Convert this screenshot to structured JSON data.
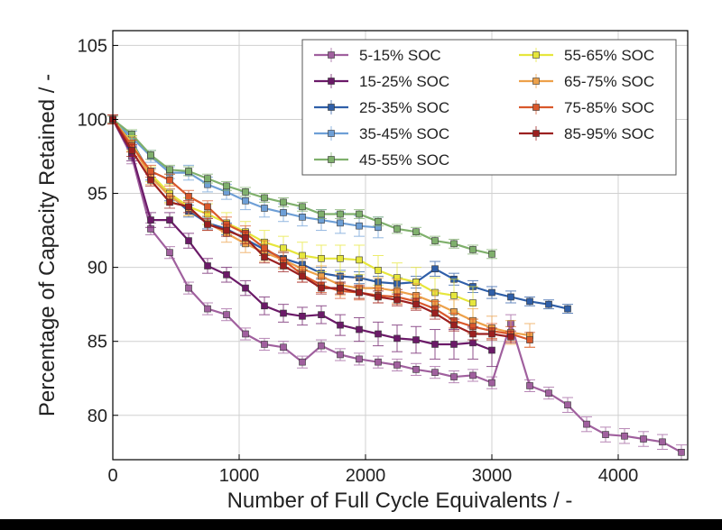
{
  "chart_data": {
    "type": "line",
    "title": "",
    "xlabel": "Number of Full Cycle Equivalents / -",
    "ylabel": "Percentage of Capacity Retained / -",
    "xlim": [
      0,
      4550
    ],
    "ylim": [
      77,
      106
    ],
    "xticks": [
      0,
      1000,
      2000,
      3000,
      4000
    ],
    "yticks": [
      80,
      85,
      90,
      95,
      100,
      105
    ],
    "grid": true,
    "legend_position": "top-right",
    "series": [
      {
        "name": "5-15% SOC",
        "color": "#a0609e",
        "x": [
          0,
          150,
          300,
          450,
          600,
          750,
          900,
          1050,
          1200,
          1350,
          1500,
          1650,
          1800,
          1950,
          2100,
          2250,
          2400,
          2550,
          2700,
          2850,
          3000,
          3150,
          3300,
          3450,
          3600,
          3750,
          3900,
          4050,
          4200,
          4350,
          4500
        ],
        "y": [
          100,
          97.5,
          92.6,
          91.0,
          88.6,
          87.2,
          86.8,
          85.5,
          84.8,
          84.6,
          83.6,
          84.7,
          84.1,
          83.8,
          83.6,
          83.4,
          83.1,
          82.9,
          82.6,
          82.7,
          82.2,
          86.2,
          82.0,
          81.5,
          80.7,
          79.4,
          78.7,
          78.6,
          78.4,
          78.2,
          77.5
        ],
        "err": [
          0.3,
          0.5,
          0.4,
          0.4,
          0.4,
          0.4,
          0.4,
          0.4,
          0.4,
          0.4,
          0.4,
          0.4,
          0.4,
          0.4,
          0.4,
          0.4,
          0.4,
          0.4,
          0.4,
          0.4,
          0.4,
          0.6,
          0.4,
          0.4,
          0.5,
          0.5,
          0.5,
          0.5,
          0.5,
          0.5,
          0.5
        ]
      },
      {
        "name": "15-25% SOC",
        "color": "#6b1a68",
        "x": [
          0,
          150,
          300,
          450,
          600,
          750,
          900,
          1050,
          1200,
          1350,
          1500,
          1650,
          1800,
          1950,
          2100,
          2250,
          2400,
          2550,
          2700,
          2850,
          3000
        ],
        "y": [
          100,
          97.7,
          93.2,
          93.2,
          91.8,
          90.1,
          89.5,
          88.6,
          87.4,
          86.9,
          86.7,
          86.8,
          86.1,
          85.8,
          85.5,
          85.2,
          85.1,
          84.8,
          84.8,
          84.9,
          84.4
        ],
        "err": [
          0.3,
          0.5,
          0.5,
          0.5,
          0.5,
          0.5,
          0.5,
          0.5,
          0.6,
          0.6,
          0.6,
          0.6,
          0.7,
          0.8,
          0.8,
          0.9,
          0.9,
          1.0,
          1.0,
          1.1,
          1.1
        ]
      },
      {
        "name": "25-35% SOC",
        "color": "#2f5fa8",
        "x": [
          0,
          150,
          300,
          450,
          600,
          750,
          900,
          1050,
          1200,
          1350,
          1500,
          1650,
          1800,
          1950,
          2100,
          2250,
          2400,
          2550,
          2700,
          2850,
          3000,
          3150,
          3300,
          3450,
          3600
        ],
        "y": [
          100,
          98.5,
          96.3,
          94.9,
          93.8,
          93.0,
          92.6,
          91.9,
          91.2,
          90.6,
          90.2,
          89.6,
          89.4,
          89.3,
          89.0,
          88.9,
          89.0,
          89.9,
          89.2,
          88.7,
          88.3,
          88.0,
          87.7,
          87.5,
          87.2
        ],
        "err": [
          0.3,
          0.4,
          0.4,
          0.4,
          0.4,
          0.4,
          0.4,
          0.4,
          0.4,
          0.4,
          0.4,
          0.4,
          0.4,
          0.4,
          0.4,
          0.4,
          0.4,
          0.5,
          0.4,
          0.4,
          0.4,
          0.4,
          0.3,
          0.3,
          0.3
        ]
      },
      {
        "name": "35-45% SOC",
        "color": "#6e9fd6",
        "x": [
          0,
          150,
          300,
          450,
          600,
          750,
          900,
          1050,
          1200,
          1350,
          1500,
          1650,
          1800,
          1950,
          2100
        ],
        "y": [
          100,
          98.8,
          97.5,
          96.4,
          96.4,
          95.6,
          95.1,
          94.5,
          94.0,
          93.7,
          93.4,
          93.2,
          93.0,
          92.8,
          92.7
        ],
        "err": [
          0.3,
          0.4,
          0.4,
          0.4,
          0.5,
          0.5,
          0.5,
          0.6,
          0.6,
          0.6,
          0.6,
          0.7,
          0.7,
          0.7,
          0.7
        ]
      },
      {
        "name": "45-55% SOC",
        "color": "#7fb06c",
        "x": [
          0,
          150,
          300,
          450,
          600,
          750,
          900,
          1050,
          1200,
          1350,
          1500,
          1650,
          1800,
          1950,
          2100,
          2250,
          2400,
          2550,
          2700,
          2850,
          3000
        ],
        "y": [
          100,
          99.0,
          97.6,
          96.6,
          96.5,
          96.0,
          95.5,
          95.1,
          94.7,
          94.4,
          94.1,
          93.6,
          93.6,
          93.6,
          93.1,
          92.6,
          92.4,
          91.8,
          91.6,
          91.2,
          90.9
        ],
        "err": [
          0.2,
          0.3,
          0.3,
          0.3,
          0.3,
          0.3,
          0.3,
          0.3,
          0.3,
          0.3,
          0.3,
          0.3,
          0.3,
          0.3,
          0.3,
          0.3,
          0.3,
          0.3,
          0.3,
          0.3,
          0.3
        ]
      },
      {
        "name": "55-65% SOC",
        "color": "#e6e63c",
        "x": [
          0,
          150,
          300,
          450,
          600,
          750,
          900,
          1050,
          1200,
          1350,
          1500,
          1650,
          1800,
          1950,
          2100,
          2250,
          2400,
          2550,
          2700,
          2850
        ],
        "y": [
          100,
          98.4,
          96.3,
          95.0,
          94.1,
          93.6,
          93.0,
          92.4,
          91.7,
          91.3,
          90.8,
          90.6,
          90.6,
          90.5,
          89.8,
          89.3,
          89.0,
          88.3,
          88.1,
          87.6
        ],
        "err": [
          0.3,
          0.5,
          0.5,
          0.6,
          0.6,
          0.7,
          0.7,
          0.7,
          0.8,
          0.8,
          0.9,
          0.9,
          0.9,
          1.0,
          1.0,
          1.0,
          1.0,
          1.0,
          1.1,
          1.1
        ]
      },
      {
        "name": "65-75% SOC",
        "color": "#eda14a",
        "x": [
          0,
          150,
          300,
          450,
          600,
          750,
          900,
          1050,
          1200,
          1350,
          1500,
          1650,
          1800,
          1950,
          2100,
          2250,
          2400,
          2550,
          2700,
          2850,
          3000,
          3150,
          3300
        ],
        "y": [
          100,
          98.3,
          96.1,
          94.8,
          94.0,
          93.0,
          92.3,
          91.6,
          91.0,
          90.5,
          89.9,
          89.4,
          88.8,
          88.6,
          88.6,
          88.4,
          88.1,
          87.6,
          87.0,
          86.4,
          85.9,
          85.6,
          85.4
        ],
        "err": [
          0.3,
          0.5,
          0.5,
          0.5,
          0.5,
          0.5,
          0.6,
          0.6,
          0.6,
          0.6,
          0.7,
          0.7,
          0.7,
          0.7,
          0.7,
          0.8,
          0.8,
          0.8,
          0.8,
          0.8,
          0.8,
          0.8,
          0.8
        ]
      },
      {
        "name": "75-85% SOC",
        "color": "#d9582b",
        "x": [
          0,
          150,
          300,
          450,
          600,
          750,
          900,
          1050,
          1200,
          1350,
          1500,
          1650,
          1800,
          1950,
          2100,
          2250,
          2400,
          2550,
          2700,
          2850,
          3000,
          3150,
          3300
        ],
        "y": [
          100,
          98.2,
          96.5,
          95.9,
          94.8,
          94.1,
          92.9,
          92.3,
          91.3,
          90.5,
          89.5,
          88.8,
          88.4,
          88.3,
          88.1,
          88.0,
          87.7,
          87.2,
          86.4,
          86.0,
          85.7,
          85.5,
          85.1
        ],
        "err": [
          0.3,
          0.4,
          0.4,
          0.4,
          0.4,
          0.4,
          0.5,
          0.5,
          0.5,
          0.5,
          0.5,
          0.5,
          0.5,
          0.5,
          0.5,
          0.5,
          0.5,
          0.5,
          0.5,
          0.5,
          0.5,
          0.5,
          0.5
        ]
      },
      {
        "name": "85-95% SOC",
        "color": "#9c2020",
        "x": [
          0,
          150,
          300,
          450,
          600,
          750,
          900,
          1050,
          1200,
          1350,
          1500,
          1650,
          1800,
          1950,
          2100,
          2250,
          2400,
          2550,
          2700,
          2850,
          3000,
          3150
        ],
        "y": [
          100,
          97.9,
          95.9,
          94.4,
          94.1,
          92.9,
          92.5,
          92.0,
          90.7,
          90.1,
          89.4,
          88.6,
          88.6,
          88.3,
          88.0,
          87.8,
          87.5,
          86.9,
          86.1,
          85.5,
          85.5,
          85.3
        ],
        "err": [
          0.3,
          0.4,
          0.4,
          0.4,
          0.4,
          0.4,
          0.4,
          0.4,
          0.4,
          0.4,
          0.4,
          0.4,
          0.4,
          0.4,
          0.4,
          0.4,
          0.4,
          0.4,
          0.4,
          0.4,
          0.4,
          0.4
        ]
      }
    ]
  }
}
